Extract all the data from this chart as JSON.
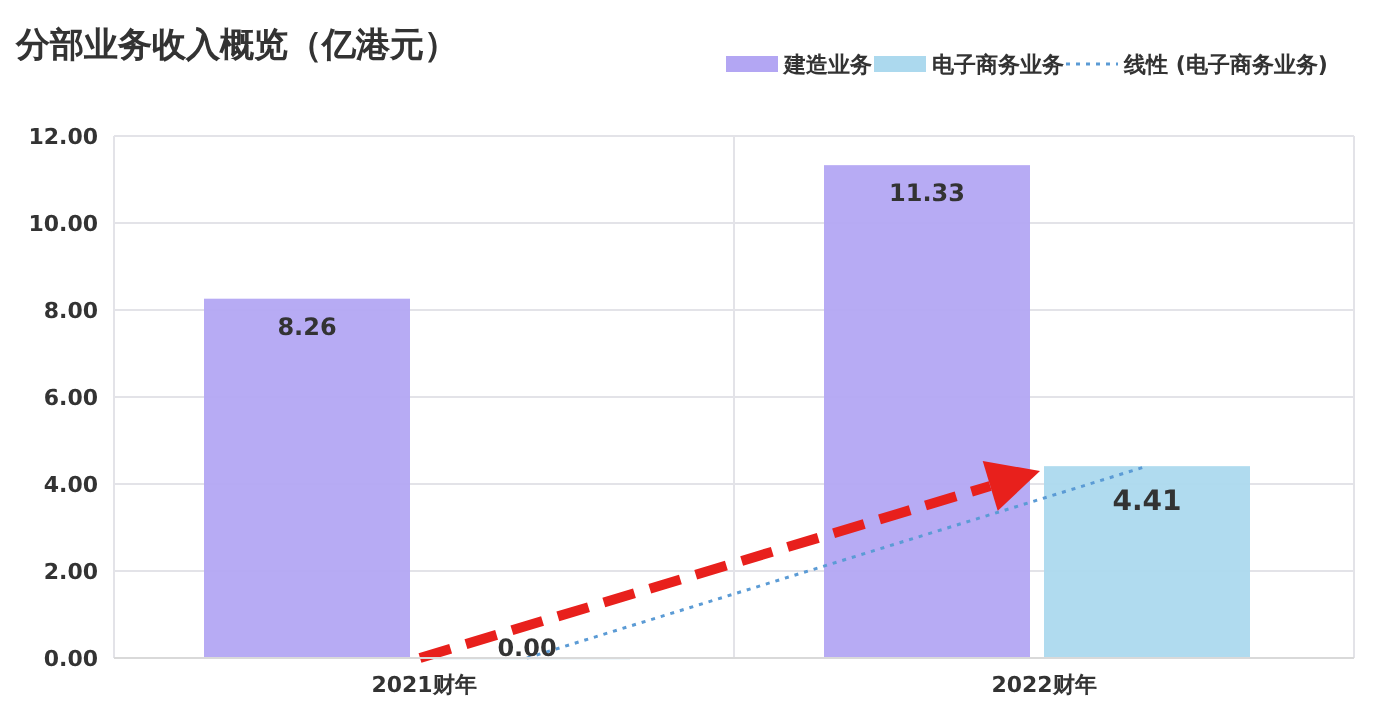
{
  "chart_data": {
    "type": "bar",
    "title": "分部业务收入概览（亿港元）",
    "categories": [
      "2021财年",
      "2022财年"
    ],
    "series": [
      {
        "name": "建造业务",
        "color": "#b3a6f3",
        "values": [
          8.26,
          11.33
        ],
        "value_labels": [
          "8.26",
          "11.33"
        ]
      },
      {
        "name": "电子商务业务",
        "color": "#acd9ee",
        "values": [
          0,
          4.41
        ],
        "value_labels": [
          "0.00",
          "4.41"
        ]
      },
      {
        "name": "线性 (电子商务业务)",
        "type": "line",
        "color": "#5b9bd5",
        "line_style": "dotted",
        "values": [
          0,
          4.41
        ]
      }
    ],
    "ylim": [
      0,
      12
    ],
    "yticks": [
      {
        "value": 0,
        "label": "0.00"
      },
      {
        "value": 2,
        "label": "2.00"
      },
      {
        "value": 4,
        "label": "4.00"
      },
      {
        "value": 6,
        "label": "6.00"
      },
      {
        "value": 8,
        "label": "8.00"
      },
      {
        "value": 10,
        "label": "10.00"
      },
      {
        "value": 12,
        "label": "12.00"
      }
    ],
    "grid": true,
    "legend": "top right"
  }
}
